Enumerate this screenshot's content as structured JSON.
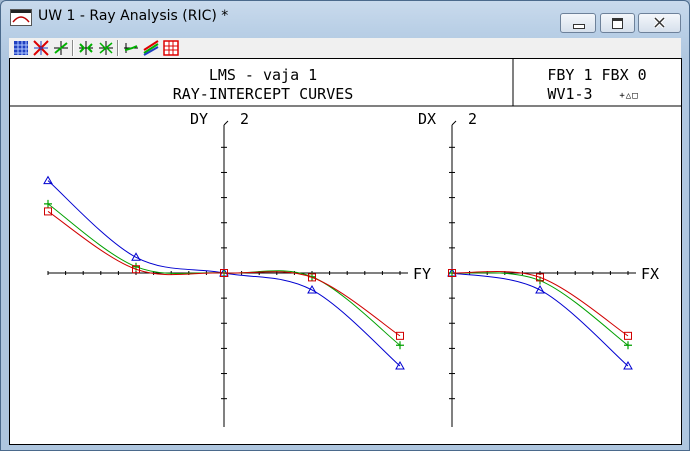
{
  "window": {
    "title": "UW 1 - Ray Analysis (RIC) *",
    "controls": [
      "minimize",
      "maximize",
      "close"
    ]
  },
  "toolbar": {
    "icons": [
      "grid-icon",
      "cross-rays-icon",
      "fan-plus-icon",
      "fan-arrows-icon",
      "fan-split-icon",
      "curve-single-icon",
      "curve-multi-icon",
      "grid-red-icon"
    ]
  },
  "plot_header": {
    "line1": "LMS - vaja 1",
    "line2": "RAY-INTERCEPT CURVES",
    "field_info": "FBY 1 FBX 0",
    "wavelength_info": "WV1-3",
    "wavelength_symbols": "+△□"
  },
  "chart_data": [
    {
      "type": "line",
      "title": "DY",
      "ylabel": "DY",
      "xlabel": "FY",
      "y_scale_label": "2",
      "xlim": [
        -1,
        1
      ],
      "ylim": [
        -2,
        2
      ],
      "series": [
        {
          "marker": "triangle",
          "color": "#0000d0",
          "x": [
            -1,
            -0.5,
            0,
            0.5,
            1
          ],
          "y": [
            1.47,
            0.25,
            0,
            -0.27,
            -1.48
          ]
        },
        {
          "marker": "plus",
          "color": "#00a000",
          "x": [
            -1,
            -0.5,
            0,
            0.5,
            1
          ],
          "y": [
            1.1,
            0.1,
            0,
            -0.06,
            -1.15
          ]
        },
        {
          "marker": "square",
          "color": "#d00000",
          "x": [
            -1,
            -0.5,
            0,
            0.5,
            1
          ],
          "y": [
            0.98,
            0.06,
            0,
            -0.07,
            -1.0
          ]
        }
      ]
    },
    {
      "type": "line",
      "title": "DX",
      "ylabel": "DX",
      "xlabel": "FX",
      "y_scale_label": "2",
      "xlim": [
        0,
        1
      ],
      "ylim": [
        -2,
        2
      ],
      "series": [
        {
          "marker": "triangle",
          "color": "#0000d0",
          "x": [
            0,
            0.5,
            1
          ],
          "y": [
            0,
            -0.27,
            -1.48
          ]
        },
        {
          "marker": "plus",
          "color": "#00a000",
          "x": [
            0,
            0.5,
            1
          ],
          "y": [
            0,
            -0.12,
            -1.15
          ]
        },
        {
          "marker": "square",
          "color": "#d00000",
          "x": [
            0,
            0.5,
            1
          ],
          "y": [
            0,
            -0.07,
            -1.0
          ]
        }
      ]
    }
  ]
}
